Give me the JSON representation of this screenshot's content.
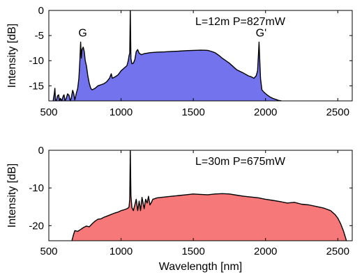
{
  "chart_data": [
    {
      "type": "area",
      "annotation": "L=12m P=827mW",
      "peak_labels": [
        {
          "text": "G",
          "x": 720,
          "y": -6.3
        },
        {
          "text": "G'",
          "x": 1955,
          "y": -6.3
        }
      ],
      "ylabel": "Intensity [dB]",
      "xlabel": "",
      "xlim": [
        500,
        2600
      ],
      "ylim": [
        -18,
        0
      ],
      "xticks": [
        500,
        1000,
        1500,
        2000,
        2500
      ],
      "yticks": [
        0,
        -5,
        -10,
        -15
      ],
      "color": "#7373ee",
      "grid": false,
      "series": [
        {
          "x": [
            530,
            538,
            542,
            546,
            552,
            560,
            568,
            574,
            580,
            590,
            600,
            605,
            612,
            620,
            630,
            640,
            648,
            655,
            665,
            672,
            680,
            690,
            700,
            708,
            715,
            720,
            725,
            730,
            738,
            745,
            752,
            760,
            770,
            780,
            790,
            800,
            820,
            840,
            860,
            880,
            900,
            920,
            932,
            940,
            960,
            980,
            1000,
            1020,
            1040,
            1050,
            1055,
            1060,
            1064,
            1068,
            1075,
            1085,
            1095,
            1105,
            1115,
            1125,
            1140,
            1160,
            1180,
            1200,
            1250,
            1300,
            1350,
            1400,
            1450,
            1500,
            1550,
            1580,
            1600,
            1620,
            1650,
            1680,
            1700,
            1750,
            1800,
            1850,
            1880,
            1900,
            1920,
            1935,
            1945,
            1952,
            1955,
            1958,
            1965,
            1975,
            1990,
            2010,
            2030,
            2050,
            2070,
            2090,
            2110
          ],
          "y": [
            -18,
            -16.5,
            -15.5,
            -17.8,
            -18,
            -17,
            -16.8,
            -18,
            -17.5,
            -18,
            -17,
            -16.8,
            -18,
            -17.5,
            -16.6,
            -16.9,
            -18,
            -17.5,
            -15.9,
            -16.5,
            -17.8,
            -16.5,
            -15.5,
            -13.5,
            -10,
            -6.3,
            -9.5,
            -7.8,
            -7.3,
            -8.2,
            -10,
            -11,
            -13,
            -14.5,
            -15.5,
            -15.8,
            -15.5,
            -15,
            -14.8,
            -14.6,
            -14.2,
            -13.5,
            -12.6,
            -13.5,
            -13.2,
            -12.8,
            -12,
            -11.5,
            -11,
            -10,
            -9,
            -8.5,
            0,
            -9.6,
            -10.6,
            -10.5,
            -9.8,
            -8.2,
            -7.8,
            -8.5,
            -8.8,
            -8.6,
            -8.5,
            -8.4,
            -8.3,
            -8.25,
            -8.15,
            -8.1,
            -8,
            -7.95,
            -7.9,
            -7.92,
            -7.95,
            -8.1,
            -8.4,
            -9,
            -9.5,
            -10.5,
            -11.8,
            -12.5,
            -13,
            -13.2,
            -13.5,
            -13,
            -12,
            -8,
            -6.3,
            -8.5,
            -13.5,
            -15.8,
            -16.3,
            -16.8,
            -17.2,
            -17.5,
            -17.7,
            -17.9,
            -18
          ]
        }
      ]
    },
    {
      "type": "area",
      "annotation": "L=30m P=675mW",
      "ylabel": "Intensity [dB]",
      "xlabel": "Wavelength [nm]",
      "xlim": [
        500,
        2600
      ],
      "ylim": [
        -24,
        0
      ],
      "xticks": [
        500,
        1000,
        1500,
        2000,
        2500
      ],
      "yticks": [
        0,
        -10,
        -20
      ],
      "color": "#f77878",
      "grid": false,
      "series": [
        {
          "x": [
            660,
            670,
            680,
            700,
            720,
            740,
            760,
            780,
            800,
            820,
            840,
            860,
            880,
            900,
            920,
            940,
            960,
            980,
            1000,
            1020,
            1040,
            1050,
            1055,
            1060,
            1064,
            1068,
            1075,
            1085,
            1095,
            1105,
            1115,
            1125,
            1135,
            1145,
            1160,
            1170,
            1180,
            1190,
            1200,
            1210,
            1220,
            1250,
            1300,
            1350,
            1400,
            1450,
            1500,
            1550,
            1600,
            1650,
            1700,
            1750,
            1800,
            1850,
            1900,
            1950,
            2000,
            2050,
            2100,
            2150,
            2200,
            2250,
            2300,
            2350,
            2400,
            2450,
            2480,
            2500,
            2520,
            2540,
            2560
          ],
          "y": [
            -24,
            -22.5,
            -21.3,
            -21.5,
            -21,
            -20.5,
            -20.1,
            -20.3,
            -19.5,
            -18.8,
            -18.3,
            -18.2,
            -17.8,
            -17.5,
            -17.2,
            -16.9,
            -16.6,
            -16.4,
            -16,
            -15.8,
            -15.5,
            -15.3,
            -15,
            -13,
            0,
            -12,
            -15.2,
            -16,
            -14.5,
            -13,
            -16,
            -13.5,
            -16,
            -12.5,
            -15.5,
            -13,
            -14,
            -12.2,
            -14.5,
            -13.8,
            -13,
            -12.6,
            -12.4,
            -12.2,
            -12,
            -11.8,
            -11.6,
            -11.7,
            -11.8,
            -11.6,
            -11.5,
            -11.6,
            -11.9,
            -12.2,
            -12.4,
            -12.6,
            -13,
            -13.3,
            -13.6,
            -14,
            -13.8,
            -14.3,
            -14.5,
            -14.9,
            -15.3,
            -16,
            -17,
            -18,
            -19.5,
            -21.5,
            -24
          ]
        }
      ]
    }
  ]
}
